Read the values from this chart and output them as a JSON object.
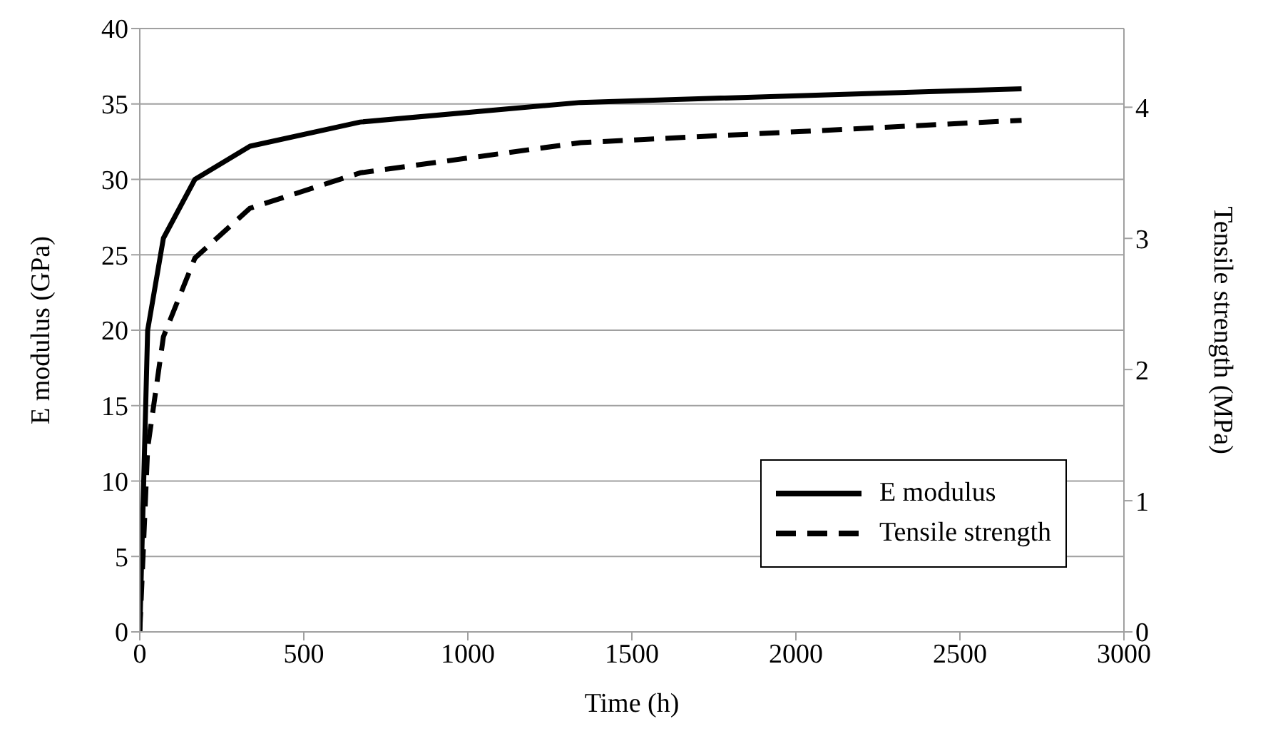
{
  "chart_data": {
    "type": "line",
    "xlabel": "Time (h)",
    "ylabel": "E modulus (GPa)",
    "y2label": "Tensile strength (MPa)",
    "x": [
      0,
      24,
      72,
      168,
      336,
      672,
      1344,
      2688
    ],
    "series": [
      {
        "name": "E modulus",
        "color": "#000000",
        "values": [
          0,
          20,
          26.1,
          30,
          32.2,
          33.8,
          35.1,
          36
        ],
        "line_style": "solid"
      },
      {
        "name": "Tensile strength",
        "color": "#000000",
        "values": [
          0,
          1.4,
          2.25,
          2.85,
          3.23,
          3.5,
          3.73,
          3.9
        ],
        "line_style": "dashed",
        "axis": "y2"
      }
    ],
    "xlim": [
      0,
      3000
    ],
    "xticks": [
      0,
      500,
      1000,
      1500,
      2000,
      2500,
      3000
    ],
    "ylim": [
      0,
      40
    ],
    "yticks": [
      0,
      5,
      10,
      15,
      20,
      25,
      30,
      35,
      40
    ],
    "y2lim": [
      0,
      4.6
    ],
    "y2ticks": [
      0,
      1,
      2,
      3,
      4
    ],
    "grid": "y",
    "legend": "bottom right",
    "marker": "none"
  }
}
